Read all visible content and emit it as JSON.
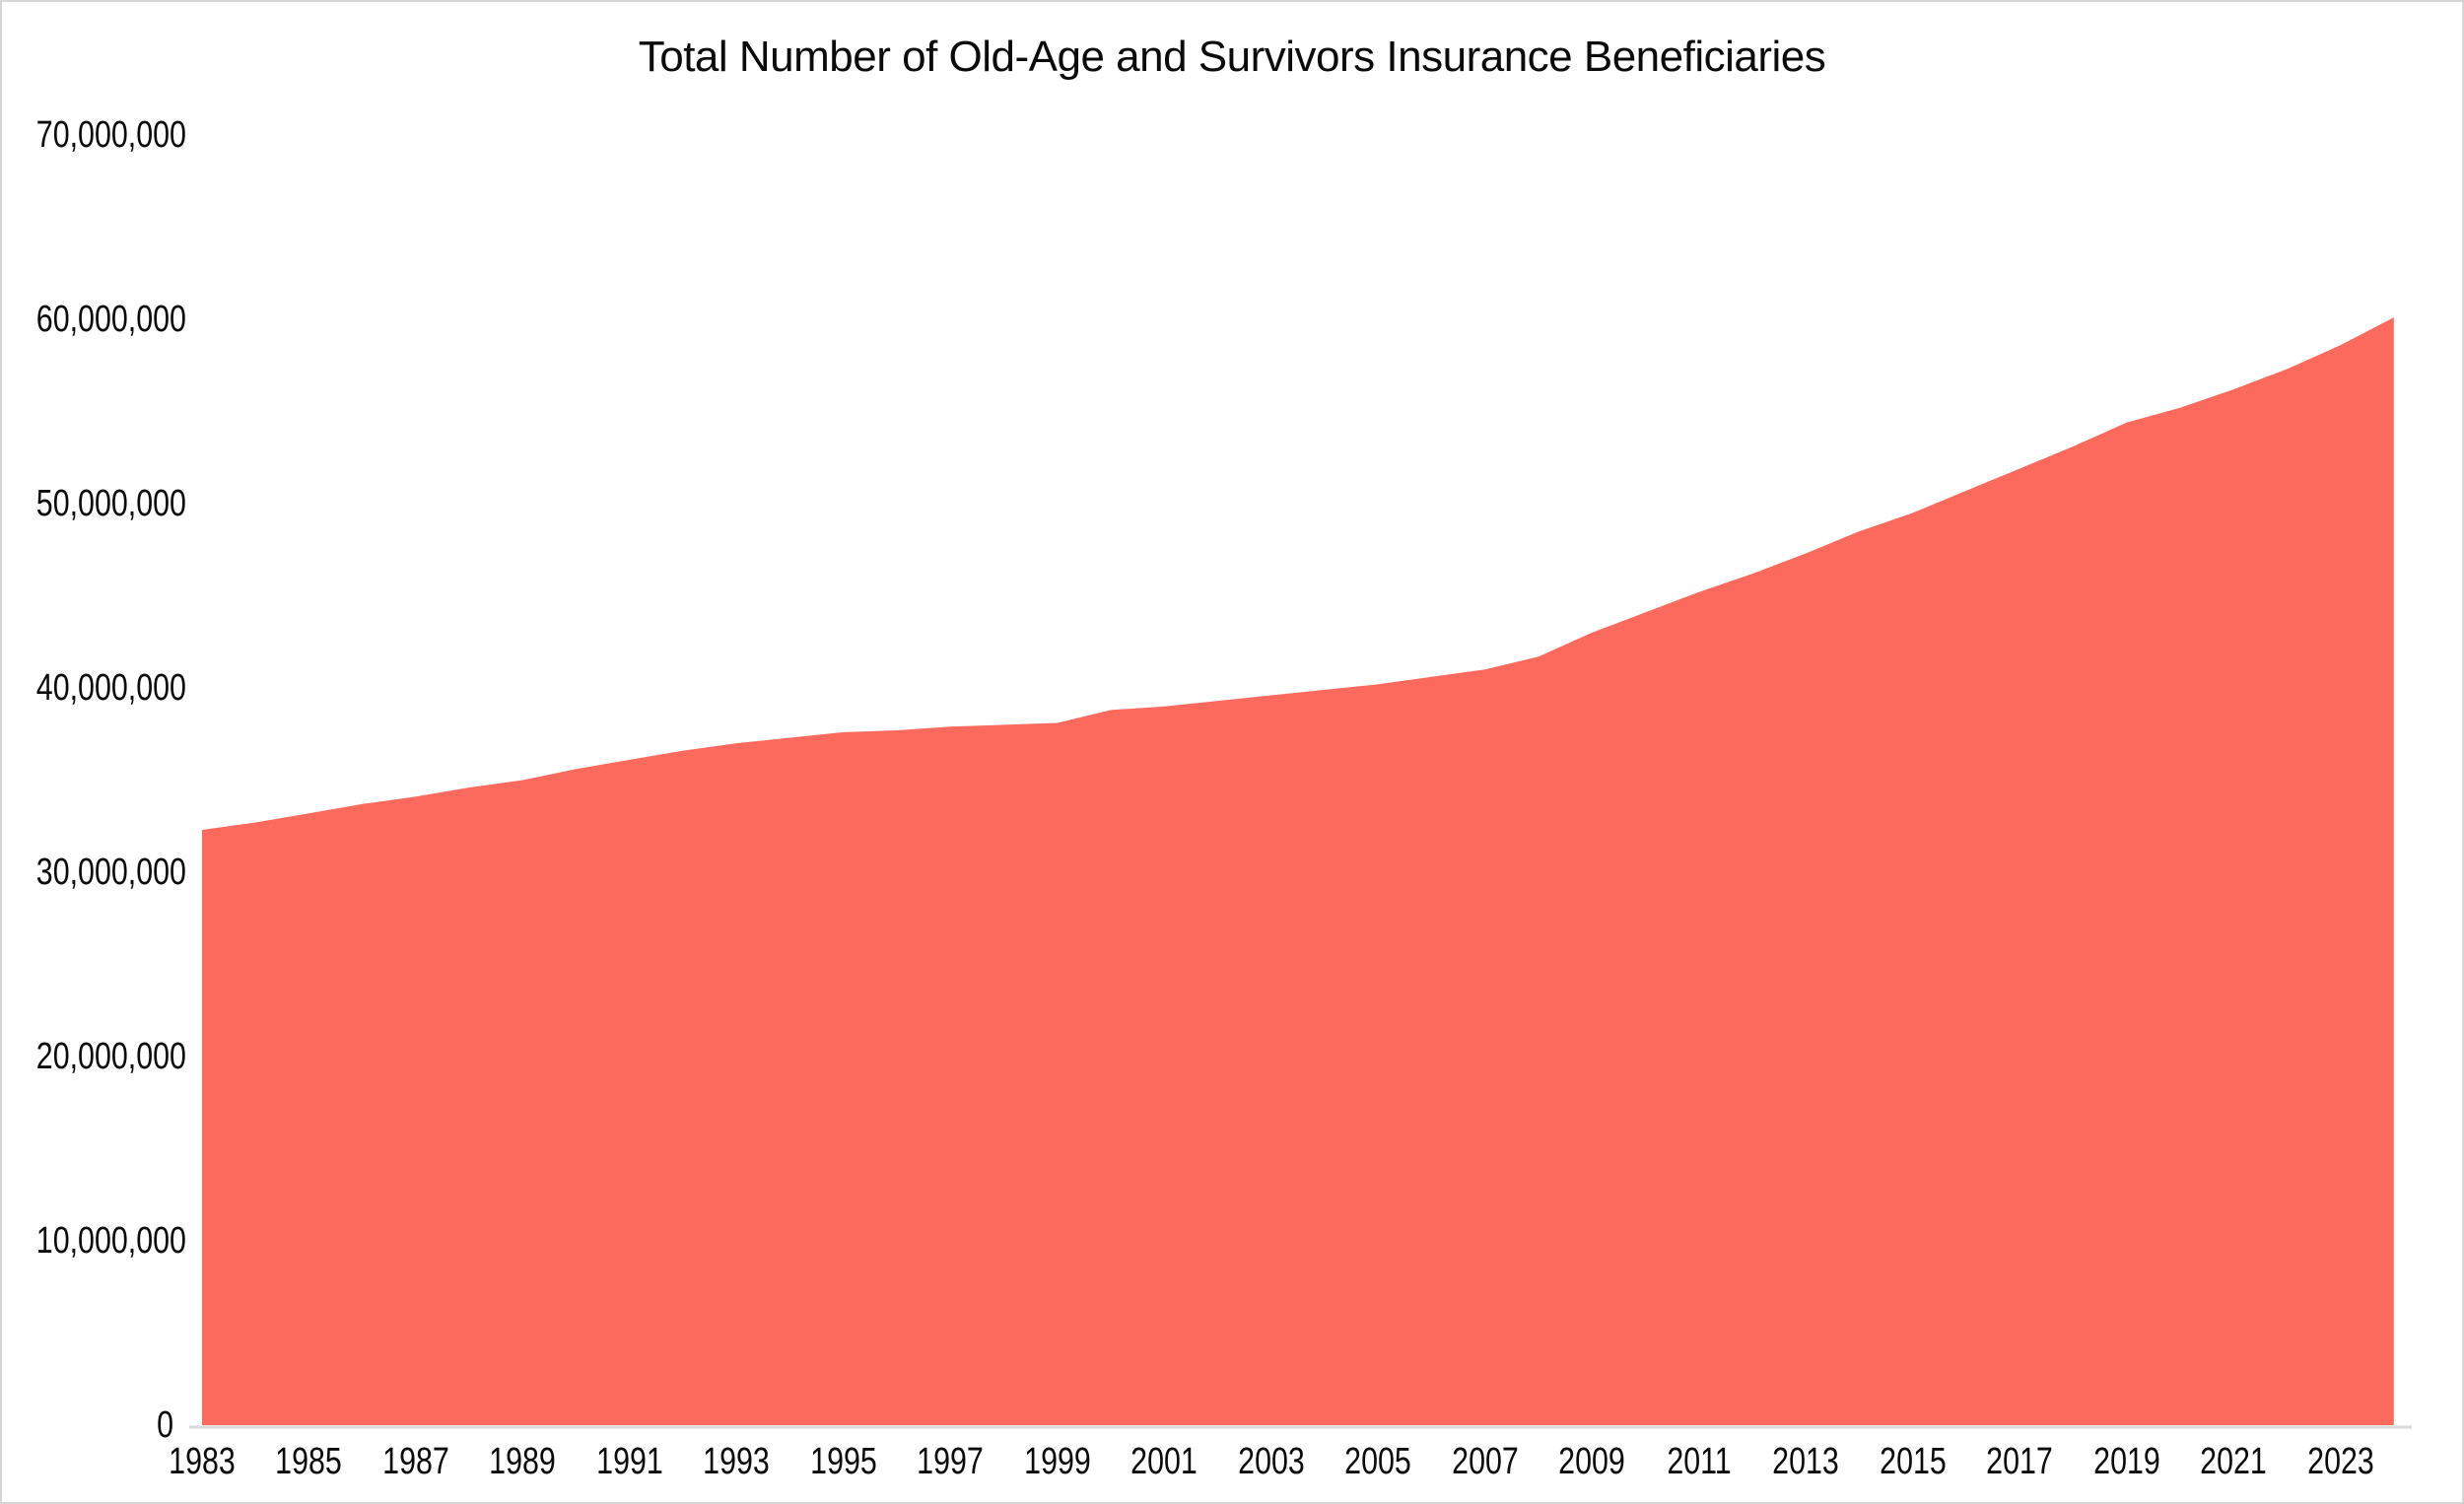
{
  "chart_data": {
    "type": "area",
    "title": "Total Number of Old-Age and Survivors Insurance Beneficiaries",
    "x": [
      1983,
      1984,
      1985,
      1986,
      1987,
      1988,
      1989,
      1990,
      1991,
      1992,
      1993,
      1994,
      1995,
      1996,
      1997,
      1998,
      1999,
      2000,
      2001,
      2002,
      2003,
      2004,
      2005,
      2006,
      2007,
      2008,
      2009,
      2010,
      2011,
      2012,
      2013,
      2014,
      2015,
      2016,
      2017,
      2018,
      2019,
      2020,
      2021,
      2022,
      2023,
      2024
    ],
    "values": [
      32300000,
      32700000,
      33200000,
      33700000,
      34100000,
      34600000,
      35000000,
      35600000,
      36100000,
      36600000,
      37000000,
      37300000,
      37600000,
      37700000,
      37900000,
      38000000,
      38100000,
      38800000,
      39000000,
      39300000,
      39600000,
      39900000,
      40200000,
      40600000,
      41000000,
      41700000,
      43000000,
      44100000,
      45200000,
      46200000,
      47300000,
      48500000,
      49500000,
      50700000,
      51900000,
      53100000,
      54400000,
      55200000,
      56200000,
      57300000,
      58600000,
      60100000
    ],
    "x_tick_labels": [
      "1983",
      "1985",
      "1987",
      "1989",
      "1991",
      "1993",
      "1995",
      "1997",
      "1999",
      "2001",
      "2003",
      "2005",
      "2007",
      "2009",
      "2011",
      "2013",
      "2015",
      "2017",
      "2019",
      "2021",
      "2023"
    ],
    "x_tick_years": [
      1983,
      1985,
      1987,
      1989,
      1991,
      1993,
      1995,
      1997,
      1999,
      2001,
      2003,
      2005,
      2007,
      2009,
      2011,
      2013,
      2015,
      2017,
      2019,
      2021,
      2023
    ],
    "y_ticks": [
      {
        "value": 0,
        "label": "0"
      },
      {
        "value": 10000000,
        "label": "10,000,000"
      },
      {
        "value": 20000000,
        "label": "20,000,000"
      },
      {
        "value": 30000000,
        "label": "30,000,000"
      },
      {
        "value": 40000000,
        "label": "40,000,000"
      },
      {
        "value": 50000000,
        "label": "50,000,000"
      },
      {
        "value": 60000000,
        "label": "60,000,000"
      },
      {
        "value": 70000000,
        "label": "70,000,000"
      }
    ],
    "xlim": [
      1983,
      2024
    ],
    "ylim": [
      0,
      70000000
    ],
    "grid": false,
    "legend": "none",
    "fill_color": "#FC6A5E",
    "axis_line_color": "#D9D9D9",
    "text_color": "#0b0b0b",
    "background": "#FFFFFF"
  }
}
